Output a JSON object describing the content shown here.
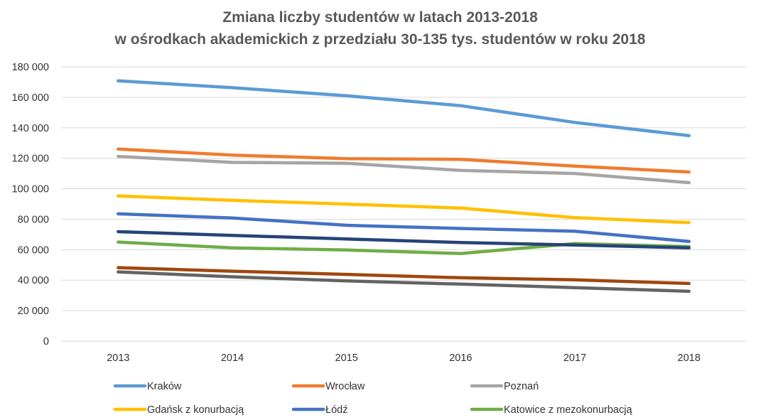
{
  "chart_data": {
    "type": "line",
    "title": [
      "Zmiana liczby studentów w latach 2013-2018",
      "w ośrodkach akademickich z przedziału 30-135 tys. studentów w roku 2018"
    ],
    "xlabel": "",
    "ylabel": "",
    "categories": [
      "2013",
      "2014",
      "2015",
      "2016",
      "2017",
      "2018"
    ],
    "ylim": [
      0,
      180000
    ],
    "yticks": [
      {
        "value": 0,
        "label": "0"
      },
      {
        "value": 20000,
        "label": "20 000"
      },
      {
        "value": 40000,
        "label": "40 000"
      },
      {
        "value": 60000,
        "label": "60 000"
      },
      {
        "value": 80000,
        "label": "80 000"
      },
      {
        "value": 100000,
        "label": "100 000"
      },
      {
        "value": 120000,
        "label": "120 000"
      },
      {
        "value": 140000,
        "label": "140 000"
      },
      {
        "value": 160000,
        "label": "160 000"
      },
      {
        "value": 180000,
        "label": "180 000"
      }
    ],
    "grid": true,
    "legend": "bottom",
    "series": [
      {
        "name": "Kraków",
        "color": "#5b9bd5",
        "values": [
          170800,
          166300,
          161000,
          154500,
          143500,
          134800
        ]
      },
      {
        "name": "Wrocław",
        "color": "#ed7d31",
        "values": [
          126000,
          122100,
          119700,
          119300,
          114800,
          111000
        ]
      },
      {
        "name": "Poznań",
        "color": "#a5a5a5",
        "values": [
          121200,
          117300,
          116700,
          112000,
          110000,
          104000
        ]
      },
      {
        "name": "Gdańsk z konurbacją",
        "color": "#ffc000",
        "values": [
          95200,
          92400,
          89900,
          87300,
          81000,
          77800
        ]
      },
      {
        "name": "Łódź",
        "color": "#4472c4",
        "values": [
          83500,
          80800,
          76000,
          73900,
          72100,
          65400
        ]
      },
      {
        "name": "Katowice z mezokonurbacją",
        "color": "#70ad47",
        "values": [
          65000,
          61200,
          59800,
          57500,
          64000,
          62000
        ]
      },
      {
        "name": "",
        "color": "#264478",
        "values": [
          71800,
          69400,
          67000,
          64700,
          63100,
          61200
        ]
      },
      {
        "name": "",
        "color": "#9e480e",
        "values": [
          48200,
          45900,
          43800,
          41600,
          40200,
          37800
        ]
      },
      {
        "name": "",
        "color": "#636363",
        "values": [
          45400,
          42200,
          39500,
          37400,
          35100,
          32700
        ]
      }
    ]
  }
}
